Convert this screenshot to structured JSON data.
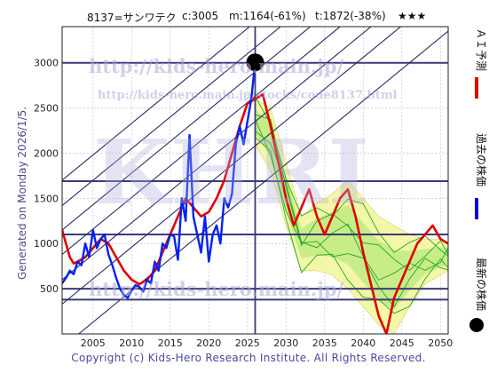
{
  "header": {
    "code_name": "8137=サンワテク",
    "current": "c:3005",
    "m_value": "m:1164(-61%)",
    "t_value": "t:1872(-38%)",
    "stars": "★★★"
  },
  "side_label": "Generated on Monday 2026/1/5.",
  "footer": "Copyright (c) Kids-Hero Research Institute. All Rights Reserved.",
  "watermarks": {
    "top": "http://kids-hero.main.jp/",
    "mid": "http://kids-hero.main.jp/stocks/code8137.html",
    "big": "KHRI",
    "bottom": "http://kids-hero.main.jp/"
  },
  "legend": [
    {
      "label": "ＡＩ予測",
      "color": "#e00000"
    },
    {
      "label": "過去の株価",
      "color": "#0000e0"
    },
    {
      "label": "最新の株価",
      "color": "#000000"
    }
  ],
  "colors": {
    "ai": "#e00000",
    "past": "#0022ee",
    "band_fill": "#f4f7a8",
    "band_fill_inner": "#c8ec88",
    "green": "#22aa22",
    "hline": "#3a3a78",
    "diag": "#2a2a6a"
  },
  "chart_data": {
    "type": "line",
    "xlim": [
      2001,
      2051
    ],
    "ylim": [
      0,
      3400
    ],
    "xticks": [
      2005,
      2010,
      2015,
      2020,
      2025,
      2030,
      2035,
      2040,
      2045,
      2050
    ],
    "yticks": [
      500,
      1000,
      1500,
      2000,
      2500,
      3000
    ],
    "grid": true,
    "horizontal_lines": [
      380,
      500,
      1100,
      1690,
      3000
    ],
    "diagonal_lines": [
      [
        [
          2001,
          330
        ],
        [
          2051,
          3830
        ]
      ],
      [
        [
          2001,
          600
        ],
        [
          2051,
          4100
        ]
      ],
      [
        [
          2001,
          880
        ],
        [
          2051,
          4380
        ]
      ],
      [
        [
          2001,
          1150
        ],
        [
          2051,
          4650
        ]
      ],
      [
        [
          2001,
          1420
        ],
        [
          2051,
          4920
        ]
      ],
      [
        [
          2001,
          1700
        ],
        [
          2051,
          5200
        ]
      ],
      [
        [
          2001,
          -150
        ],
        [
          2051,
          3350
        ]
      ]
    ],
    "vertical_line_x": 2026,
    "latest_point": {
      "x": 2026,
      "y": 3005
    },
    "series": [
      {
        "name": "過去の株価",
        "x": [
          2001,
          2001.5,
          2002,
          2002.5,
          2003,
          2003.5,
          2004,
          2004.5,
          2005,
          2005.5,
          2006,
          2006.5,
          2007,
          2007.5,
          2008,
          2008.5,
          2009,
          2009.5,
          2010,
          2010.5,
          2011,
          2011.5,
          2012,
          2012.5,
          2013,
          2013.5,
          2014,
          2014.5,
          2015,
          2015.5,
          2016,
          2016.5,
          2017,
          2017.5,
          2018,
          2018.5,
          2019,
          2019.5,
          2020,
          2020.5,
          2021,
          2021.5,
          2022,
          2022.5,
          2023,
          2023.5,
          2024,
          2024.5,
          2025,
          2025.5,
          2026
        ],
        "y": [
          560,
          620,
          700,
          660,
          800,
          760,
          1000,
          850,
          1150,
          950,
          1050,
          1100,
          880,
          760,
          620,
          500,
          430,
          400,
          480,
          540,
          520,
          470,
          600,
          560,
          800,
          700,
          1000,
          950,
          1100,
          1080,
          820,
          1500,
          1250,
          2200,
          1300,
          1100,
          900,
          1300,
          800,
          1100,
          1200,
          1000,
          1500,
          1400,
          1550,
          2100,
          2300,
          2100,
          2350,
          2600,
          3005
        ]
      },
      {
        "name": "ＡＩ予測",
        "x": [
          2001,
          2001.5,
          2002,
          2002.5,
          2003,
          2004,
          2005,
          2006,
          2007,
          2008,
          2009,
          2010,
          2011,
          2012,
          2013,
          2014,
          2015,
          2016,
          2017,
          2018,
          2019,
          2020,
          2021,
          2022,
          2023,
          2024,
          2025,
          2026,
          2027,
          2028,
          2029,
          2030,
          2031,
          2032,
          2033,
          2034,
          2035,
          2036,
          2037,
          2038,
          2039,
          2040,
          2041,
          2042,
          2043,
          2044,
          2045,
          2046,
          2047,
          2048,
          2049,
          2050,
          2051
        ],
        "y": [
          1150,
          1000,
          850,
          780,
          800,
          850,
          950,
          1050,
          1000,
          850,
          700,
          600,
          550,
          600,
          700,
          900,
          1100,
          1300,
          1500,
          1400,
          1300,
          1350,
          1500,
          1700,
          2000,
          2300,
          2550,
          2600,
          2650,
          2300,
          1900,
          1500,
          1200,
          1400,
          1600,
          1300,
          1100,
          1300,
          1500,
          1600,
          1300,
          900,
          550,
          200,
          0,
          400,
          600,
          800,
          1000,
          1100,
          1200,
          1050,
          1000
        ]
      }
    ],
    "band": {
      "x": [
        2026,
        2028,
        2030,
        2032,
        2034,
        2036,
        2038,
        2040,
        2042,
        2044,
        2046,
        2048,
        2050,
        2051
      ],
      "upper": [
        2600,
        2500,
        1900,
        1300,
        1450,
        1550,
        1700,
        1500,
        1300,
        1200,
        1100,
        1050,
        1050,
        1000
      ],
      "lower": [
        2100,
        1800,
        1200,
        700,
        700,
        650,
        500,
        300,
        100,
        0,
        300,
        550,
        650,
        700
      ]
    }
  }
}
